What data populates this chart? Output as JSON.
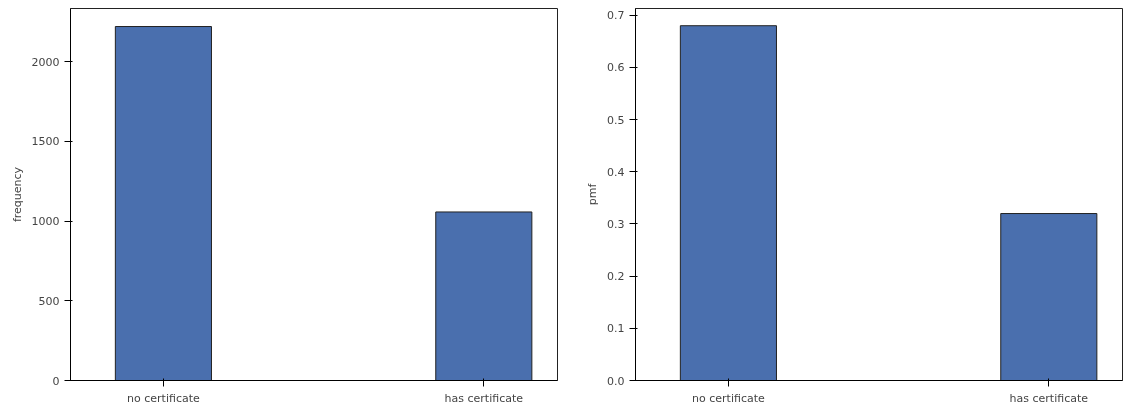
{
  "chart_data": [
    {
      "type": "bar",
      "categories": [
        "no certificate",
        "has certificate"
      ],
      "values": [
        2220,
        1057
      ],
      "color": "#4a6fae",
      "ylabel": "frequency",
      "ylim": [
        0,
        2333
      ],
      "yticks": [
        0,
        500,
        1000,
        1500,
        2000
      ],
      "grid": false
    },
    {
      "type": "bar",
      "categories": [
        "no certificate",
        "has certificate"
      ],
      "values": [
        0.68,
        0.32
      ],
      "color": "#4a6fae",
      "ylabel": "pmf",
      "ylim": [
        0,
        0.713
      ],
      "yticks": [
        {
          "value": 0,
          "label": "0.0"
        },
        0.1,
        0.2,
        0.3,
        0.4,
        0.5,
        0.6,
        0.7
      ],
      "grid": false
    }
  ]
}
